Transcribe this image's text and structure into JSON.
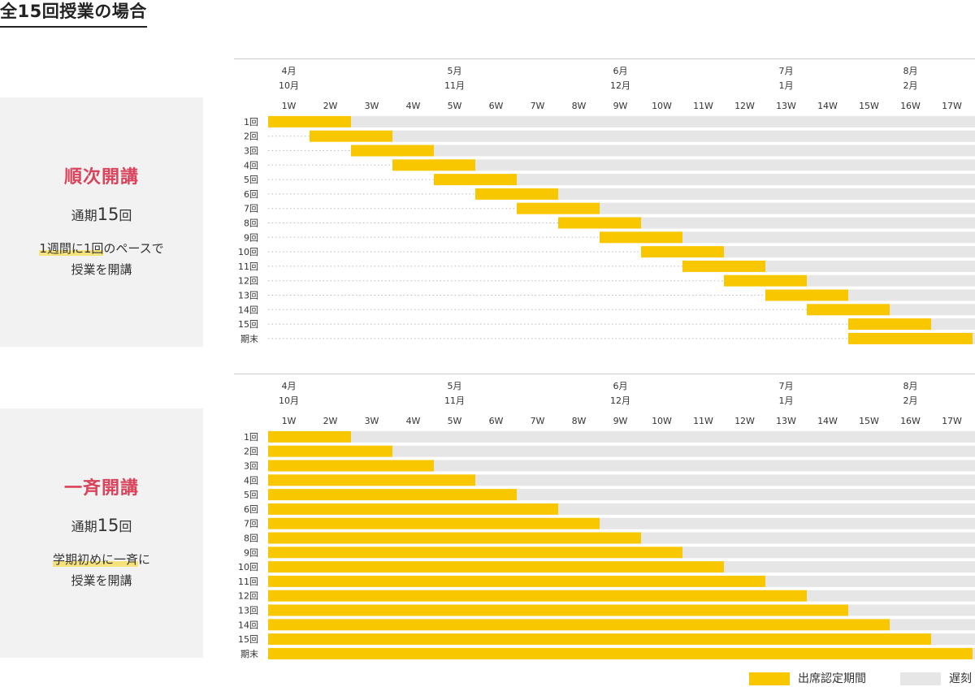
{
  "page_title": "全15回授業の場合",
  "colors": {
    "attendance": "#f9c700",
    "late": "#e6e6e6",
    "accent": "#d9435b",
    "highlight": "#f6e27a"
  },
  "sections": [
    {
      "title": "順次開講",
      "sub_label": "通期",
      "sub_number": "15",
      "sub_unit": "回",
      "desc_lines": [
        {
          "hl": "1週間に1回",
          "rest": "のペースで"
        },
        {
          "hl": "",
          "rest": "授業を開講"
        }
      ]
    },
    {
      "title": "一斉開講",
      "sub_label": "通期",
      "sub_number": "15",
      "sub_unit": "回",
      "desc_lines": [
        {
          "hl": "学期初めに一斉",
          "rest": "に"
        },
        {
          "hl": "",
          "rest": "授業を開講"
        }
      ]
    }
  ],
  "legend": {
    "attendance": "出席認定期間",
    "late": "遅刻"
  },
  "chart_data": [
    {
      "type": "gantt",
      "title": "順次開講",
      "month_labels": [
        {
          "week": 1,
          "labels": [
            "4月",
            "10月"
          ]
        },
        {
          "week": 5,
          "labels": [
            "5月",
            "11月"
          ]
        },
        {
          "week": 9,
          "labels": [
            "6月",
            "12月"
          ]
        },
        {
          "week": 13,
          "labels": [
            "7月",
            "1月"
          ]
        },
        {
          "week": 16,
          "labels": [
            "8月",
            "2月"
          ]
        }
      ],
      "weeks": [
        "1W",
        "2W",
        "3W",
        "4W",
        "5W",
        "6W",
        "7W",
        "8W",
        "9W",
        "10W",
        "11W",
        "12W",
        "13W",
        "14W",
        "15W",
        "16W",
        "17W"
      ],
      "rows": [
        {
          "label": "1回",
          "attend_start_week": 1,
          "attend_weeks": 2
        },
        {
          "label": "2回",
          "attend_start_week": 2,
          "attend_weeks": 2
        },
        {
          "label": "3回",
          "attend_start_week": 3,
          "attend_weeks": 2
        },
        {
          "label": "4回",
          "attend_start_week": 4,
          "attend_weeks": 2
        },
        {
          "label": "5回",
          "attend_start_week": 5,
          "attend_weeks": 2
        },
        {
          "label": "6回",
          "attend_start_week": 6,
          "attend_weeks": 2
        },
        {
          "label": "7回",
          "attend_start_week": 7,
          "attend_weeks": 2
        },
        {
          "label": "8回",
          "attend_start_week": 8,
          "attend_weeks": 2
        },
        {
          "label": "9回",
          "attend_start_week": 9,
          "attend_weeks": 2
        },
        {
          "label": "10回",
          "attend_start_week": 10,
          "attend_weeks": 2
        },
        {
          "label": "11回",
          "attend_start_week": 11,
          "attend_weeks": 2
        },
        {
          "label": "12回",
          "attend_start_week": 12,
          "attend_weeks": 2
        },
        {
          "label": "13回",
          "attend_start_week": 13,
          "attend_weeks": 2
        },
        {
          "label": "14回",
          "attend_start_week": 14,
          "attend_weeks": 2
        },
        {
          "label": "15回",
          "attend_start_week": 15,
          "attend_weeks": 2
        },
        {
          "label": "期末",
          "attend_start_week": 15,
          "attend_weeks": 3
        }
      ]
    },
    {
      "type": "gantt",
      "title": "一斉開講",
      "month_labels": [
        {
          "week": 1,
          "labels": [
            "4月",
            "10月"
          ]
        },
        {
          "week": 5,
          "labels": [
            "5月",
            "11月"
          ]
        },
        {
          "week": 9,
          "labels": [
            "6月",
            "12月"
          ]
        },
        {
          "week": 13,
          "labels": [
            "7月",
            "1月"
          ]
        },
        {
          "week": 16,
          "labels": [
            "8月",
            "2月"
          ]
        }
      ],
      "weeks": [
        "1W",
        "2W",
        "3W",
        "4W",
        "5W",
        "6W",
        "7W",
        "8W",
        "9W",
        "10W",
        "11W",
        "12W",
        "13W",
        "14W",
        "15W",
        "16W",
        "17W"
      ],
      "rows": [
        {
          "label": "1回",
          "attend_start_week": 1,
          "attend_weeks": 2
        },
        {
          "label": "2回",
          "attend_start_week": 1,
          "attend_weeks": 3
        },
        {
          "label": "3回",
          "attend_start_week": 1,
          "attend_weeks": 4
        },
        {
          "label": "4回",
          "attend_start_week": 1,
          "attend_weeks": 5
        },
        {
          "label": "5回",
          "attend_start_week": 1,
          "attend_weeks": 6
        },
        {
          "label": "6回",
          "attend_start_week": 1,
          "attend_weeks": 7
        },
        {
          "label": "7回",
          "attend_start_week": 1,
          "attend_weeks": 8
        },
        {
          "label": "8回",
          "attend_start_week": 1,
          "attend_weeks": 9
        },
        {
          "label": "9回",
          "attend_start_week": 1,
          "attend_weeks": 10
        },
        {
          "label": "10回",
          "attend_start_week": 1,
          "attend_weeks": 11
        },
        {
          "label": "11回",
          "attend_start_week": 1,
          "attend_weeks": 12
        },
        {
          "label": "12回",
          "attend_start_week": 1,
          "attend_weeks": 13
        },
        {
          "label": "13回",
          "attend_start_week": 1,
          "attend_weeks": 14
        },
        {
          "label": "14回",
          "attend_start_week": 1,
          "attend_weeks": 15
        },
        {
          "label": "15回",
          "attend_start_week": 1,
          "attend_weeks": 16
        },
        {
          "label": "期末",
          "attend_start_week": 1,
          "attend_weeks": 17
        }
      ]
    }
  ]
}
